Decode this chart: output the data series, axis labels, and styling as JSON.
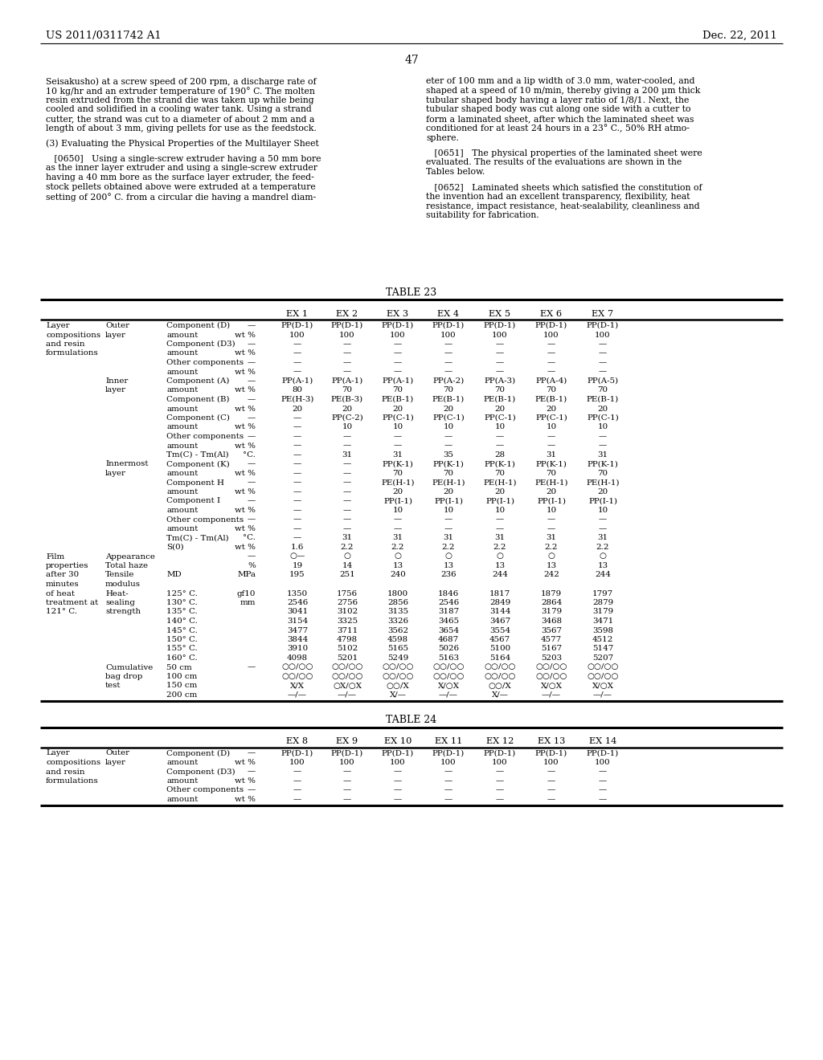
{
  "page_header_left": "US 2011/0311742 A1",
  "page_header_right": "Dec. 22, 2011",
  "page_number": "47",
  "bg_color": "#ffffff",
  "text_color": "#000000",
  "para_left_1_lines": [
    "Seisakusho) at a screw speed of 200 rpm, a discharge rate of",
    "10 kg/hr and an extruder temperature of 190° C. The molten",
    "resin extruded from the strand die was taken up while being",
    "cooled and solidified in a cooling water tank. Using a strand",
    "cutter, the strand was cut to a diameter of about 2 mm and a",
    "length of about 3 mm, giving pellets for use as the feedstock."
  ],
  "para_left_2_lines": [
    "(3) Evaluating the Physical Properties of the Multilayer Sheet"
  ],
  "para_left_3_lines": [
    "   [0650]   Using a single-screw extruder having a 50 mm bore",
    "as the inner layer extruder and using a single-screw extruder",
    "having a 40 mm bore as the surface layer extruder, the feed-",
    "stock pellets obtained above were extruded at a temperature",
    "setting of 200° C. from a circular die having a mandrel diam-"
  ],
  "para_right_1_lines": [
    "eter of 100 mm and a lip width of 3.0 mm, water-cooled, and",
    "shaped at a speed of 10 m/min, thereby giving a 200 μm thick",
    "tubular shaped body having a layer ratio of 1/8/1. Next, the",
    "tubular shaped body was cut along one side with a cutter to",
    "form a laminated sheet, after which the laminated sheet was",
    "conditioned for at least 24 hours in a 23° C., 50% RH atmo-",
    "sphere."
  ],
  "para_right_2_lines": [
    "   [0651]   The physical properties of the laminated sheet were",
    "evaluated. The results of the evaluations are shown in the",
    "Tables below."
  ],
  "para_right_3_lines": [
    "   [0652]   Laminated sheets which satisfied the constitution of",
    "the invention had an excellent transparency, flexibility, heat",
    "resistance, impact resistance, heat-sealability, cleanliness and",
    "suitability for fabrication."
  ],
  "table23_title": "TABLE 23",
  "table24_title": "TABLE 24",
  "t23_rows": [
    [
      "Layer",
      "Outer",
      "Component (D)",
      "—",
      "PP(D-1)",
      "PP(D-1)",
      "PP(D-1)",
      "PP(D-1)",
      "PP(D-1)",
      "PP(D-1)",
      "PP(D-1)"
    ],
    [
      "compositions",
      "layer",
      "amount",
      "wt %",
      "100",
      "100",
      "100",
      "100",
      "100",
      "100",
      "100"
    ],
    [
      "and resin",
      "",
      "Component (D3)",
      "—",
      "—",
      "—",
      "—",
      "—",
      "—",
      "—",
      "—"
    ],
    [
      "formulations",
      "",
      "amount",
      "wt %",
      "—",
      "—",
      "—",
      "—",
      "—",
      "—",
      "—"
    ],
    [
      "",
      "",
      "Other components",
      "—",
      "—",
      "—",
      "—",
      "—",
      "—",
      "—",
      "—"
    ],
    [
      "",
      "",
      "amount",
      "wt %",
      "—",
      "—",
      "—",
      "—",
      "—",
      "—",
      "—"
    ],
    [
      "",
      "Inner",
      "Component (A)",
      "—",
      "PP(A-1)",
      "PP(A-1)",
      "PP(A-1)",
      "PP(A-2)",
      "PP(A-3)",
      "PP(A-4)",
      "PP(A-5)"
    ],
    [
      "",
      "layer",
      "amount",
      "wt %",
      "80",
      "70",
      "70",
      "70",
      "70",
      "70",
      "70"
    ],
    [
      "",
      "",
      "Component (B)",
      "—",
      "PE(H-3)",
      "PE(B-3)",
      "PE(B-1)",
      "PE(B-1)",
      "PE(B-1)",
      "PE(B-1)",
      "PE(B-1)"
    ],
    [
      "",
      "",
      "amount",
      "wt %",
      "20",
      "20",
      "20",
      "20",
      "20",
      "20",
      "20"
    ],
    [
      "",
      "",
      "Component (C)",
      "—",
      "—",
      "PP(C-2)",
      "PP(C-1)",
      "PP(C-1)",
      "PP(C-1)",
      "PP(C-1)",
      "PP(C-1)"
    ],
    [
      "",
      "",
      "amount",
      "wt %",
      "—",
      "10",
      "10",
      "10",
      "10",
      "10",
      "10"
    ],
    [
      "",
      "",
      "Other components",
      "—",
      "—",
      "—",
      "—",
      "—",
      "—",
      "—",
      "—"
    ],
    [
      "",
      "",
      "amount",
      "wt %",
      "—",
      "—",
      "—",
      "—",
      "—",
      "—",
      "—"
    ],
    [
      "",
      "",
      "Tm(C) - Tm(Al)",
      "°C.",
      "—",
      "31",
      "31",
      "35",
      "28",
      "31",
      "31"
    ],
    [
      "",
      "Innermost",
      "Component (K)",
      "—",
      "—",
      "—",
      "PP(K-1)",
      "PP(K-1)",
      "PP(K-1)",
      "PP(K-1)",
      "PP(K-1)"
    ],
    [
      "",
      "layer",
      "amount",
      "wt %",
      "—",
      "—",
      "70",
      "70",
      "70",
      "70",
      "70"
    ],
    [
      "",
      "",
      "Component H",
      "—",
      "—",
      "—",
      "PE(H-1)",
      "PE(H-1)",
      "PE(H-1)",
      "PE(H-1)",
      "PE(H-1)"
    ],
    [
      "",
      "",
      "amount",
      "wt %",
      "—",
      "—",
      "20",
      "20",
      "20",
      "20",
      "20"
    ],
    [
      "",
      "",
      "Component I",
      "—",
      "—",
      "—",
      "PP(I-1)",
      "PP(I-1)",
      "PP(I-1)",
      "PP(I-1)",
      "PP(I-1)"
    ],
    [
      "",
      "",
      "amount",
      "wt %",
      "—",
      "—",
      "10",
      "10",
      "10",
      "10",
      "10"
    ],
    [
      "",
      "",
      "Other components",
      "—",
      "—",
      "—",
      "—",
      "—",
      "—",
      "—",
      "—"
    ],
    [
      "",
      "",
      "amount",
      "wt %",
      "—",
      "—",
      "—",
      "—",
      "—",
      "—",
      "—"
    ],
    [
      "",
      "",
      "Tm(C) - Tm(Al)",
      "°C.",
      "—",
      "31",
      "31",
      "31",
      "31",
      "31",
      "31"
    ],
    [
      "",
      "",
      "S(0)",
      "wt %",
      "1.6",
      "2.2",
      "2.2",
      "2.2",
      "2.2",
      "2.2",
      "2.2"
    ],
    [
      "Film",
      "Appearance",
      "",
      "—",
      "○—",
      "○",
      "○",
      "○",
      "○",
      "○",
      "○"
    ],
    [
      "properties",
      "Total haze",
      "",
      "%",
      "19",
      "14",
      "13",
      "13",
      "13",
      "13",
      "13"
    ],
    [
      "after 30",
      "Tensile",
      "MD",
      "MPa",
      "195",
      "251",
      "240",
      "236",
      "244",
      "242",
      "244"
    ],
    [
      "minutes",
      "modulus",
      "",
      "",
      "",
      "",
      "",
      "",
      "",
      "",
      ""
    ],
    [
      "of heat",
      "Heat-",
      "125° C.",
      "gf10",
      "1350",
      "1756",
      "1800",
      "1846",
      "1817",
      "1879",
      "1797"
    ],
    [
      "treatment at",
      "sealing",
      "130° C.",
      "mm",
      "2546",
      "2756",
      "2856",
      "2546",
      "2849",
      "2864",
      "2879"
    ],
    [
      "121° C.",
      "strength",
      "135° C.",
      "",
      "3041",
      "3102",
      "3135",
      "3187",
      "3144",
      "3179",
      "3179"
    ],
    [
      "",
      "",
      "140° C.",
      "",
      "3154",
      "3325",
      "3326",
      "3465",
      "3467",
      "3468",
      "3471"
    ],
    [
      "",
      "",
      "145° C.",
      "",
      "3477",
      "3711",
      "3562",
      "3654",
      "3554",
      "3567",
      "3598"
    ],
    [
      "",
      "",
      "150° C.",
      "",
      "3844",
      "4798",
      "4598",
      "4687",
      "4567",
      "4577",
      "4512"
    ],
    [
      "",
      "",
      "155° C.",
      "",
      "3910",
      "5102",
      "5165",
      "5026",
      "5100",
      "5167",
      "5147"
    ],
    [
      "",
      "",
      "160° C.",
      "",
      "4098",
      "5201",
      "5249",
      "5163",
      "5164",
      "5203",
      "5207"
    ],
    [
      "",
      "Cumulative",
      "50 cm",
      "—",
      "○○/○○",
      "○○/○○",
      "○○/○○",
      "○○/○○",
      "○○/○○",
      "○○/○○",
      "○○/○○"
    ],
    [
      "",
      "bag drop",
      "100 cm",
      "",
      "○○/○○",
      "○○/○○",
      "○○/○○",
      "○○/○○",
      "○○/○○",
      "○○/○○",
      "○○/○○"
    ],
    [
      "",
      "test",
      "150 cm",
      "",
      "X/X",
      "○X/○X",
      "○○/X",
      "X/○X",
      "○○/X",
      "X/○X",
      "X/○X"
    ],
    [
      "",
      "",
      "200 cm",
      "",
      "—/—",
      "—/—",
      "X/—",
      "—/—",
      "X/—",
      "—/—",
      "—/—"
    ]
  ],
  "t24_rows": [
    [
      "Layer",
      "Outer",
      "Component (D)",
      "—",
      "PP(D-1)",
      "PP(D-1)",
      "PP(D-1)",
      "PP(D-1)",
      "PP(D-1)",
      "PP(D-1)",
      "PP(D-1)"
    ],
    [
      "compositions",
      "layer",
      "amount",
      "wt %",
      "100",
      "100",
      "100",
      "100",
      "100",
      "100",
      "100"
    ],
    [
      "and resin",
      "",
      "Component (D3)",
      "—",
      "—",
      "—",
      "—",
      "—",
      "—",
      "—",
      "—"
    ],
    [
      "formulations",
      "",
      "amount",
      "wt %",
      "—",
      "—",
      "—",
      "—",
      "—",
      "—",
      "—"
    ],
    [
      "",
      "",
      "Other components",
      "—",
      "—",
      "—",
      "—",
      "—",
      "—",
      "—",
      "—"
    ],
    [
      "",
      "",
      "amount",
      "wt %",
      "—",
      "—",
      "—",
      "—",
      "—",
      "—",
      "—"
    ]
  ]
}
